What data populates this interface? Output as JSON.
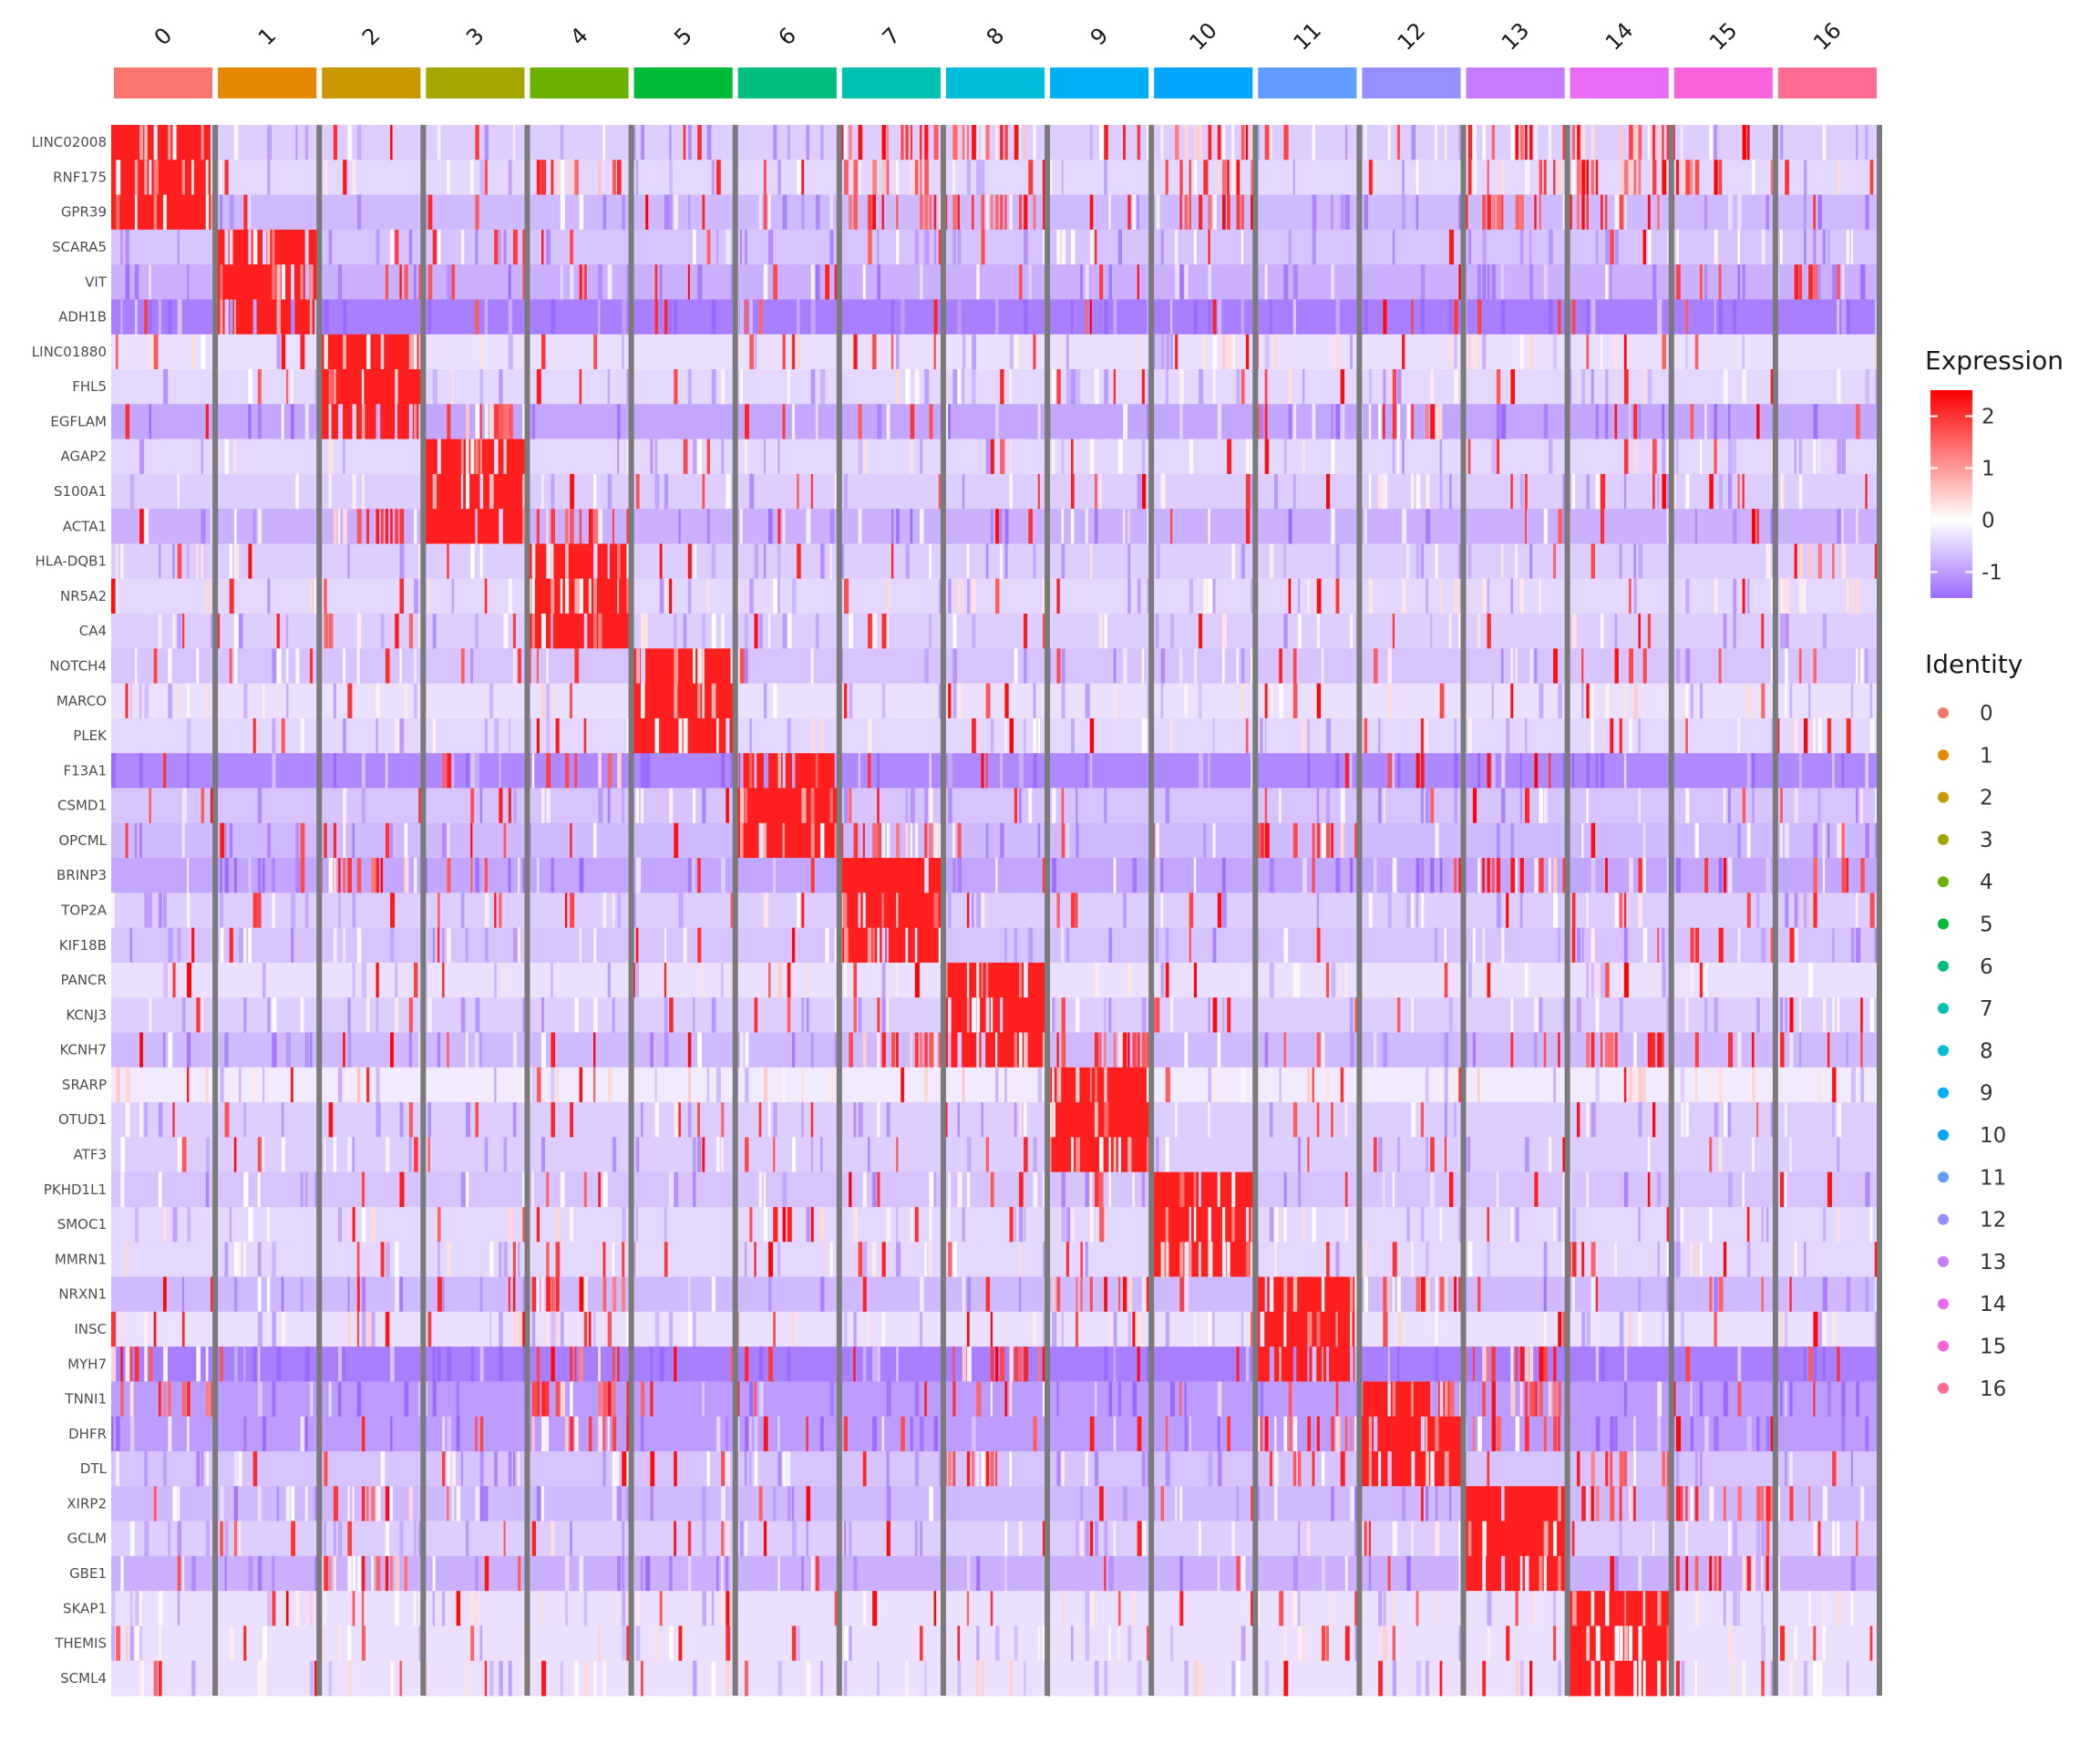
{
  "chart_data": {
    "type": "heatmap",
    "title": "",
    "xlabel": "",
    "ylabel": "",
    "clusters": [
      "0",
      "1",
      "2",
      "3",
      "4",
      "5",
      "6",
      "7",
      "8",
      "9",
      "10",
      "11",
      "12",
      "13",
      "14",
      "15",
      "16"
    ],
    "cluster_colors": [
      "#F8766D",
      "#E58700",
      "#C99800",
      "#A3A500",
      "#6BB100",
      "#00BA38",
      "#00BF7D",
      "#00C0AF",
      "#00BCD8",
      "#00B0F6",
      "#00A5FF",
      "#619CFF",
      "#9590FF",
      "#C77CFF",
      "#E76BF3",
      "#FA62DB",
      "#FF6C91"
    ],
    "genes": [
      "LINC02008",
      "RNF175",
      "GPR39",
      "SCARA5",
      "VIT",
      "ADH1B",
      "LINC01880",
      "FHL5",
      "EGFLAM",
      "AGAP2",
      "S100A1",
      "ACTA1",
      "HLA-DQB1",
      "NR5A2",
      "CA4",
      "NOTCH4",
      "MARCO",
      "PLEK",
      "F13A1",
      "CSMD1",
      "OPCML",
      "BRINP3",
      "TOP2A",
      "KIF18B",
      "PANCR",
      "KCNJ3",
      "KCNH7",
      "SRARP",
      "OTUD1",
      "ATF3",
      "PKHD1L1",
      "SMOC1",
      "MMRN1",
      "NRXN1",
      "INSC",
      "MYH7",
      "TNNI1",
      "DHFR",
      "DTL",
      "XIRP2",
      "GCLM",
      "GBE1",
      "SKAP1",
      "THEMIS",
      "SCML4"
    ],
    "marker_cluster": [
      0,
      0,
      0,
      1,
      1,
      1,
      2,
      2,
      2,
      3,
      3,
      3,
      4,
      4,
      4,
      5,
      5,
      5,
      6,
      6,
      6,
      7,
      7,
      7,
      8,
      8,
      8,
      9,
      9,
      9,
      10,
      10,
      10,
      11,
      11,
      11,
      12,
      12,
      12,
      13,
      13,
      13,
      14,
      14,
      14
    ],
    "baseline_expression": [
      -0.5,
      -0.4,
      -0.7,
      -0.6,
      -0.8,
      -1.3,
      -0.3,
      -0.4,
      -0.9,
      -0.4,
      -0.5,
      -0.8,
      -0.5,
      -0.4,
      -0.5,
      -0.6,
      -0.3,
      -0.4,
      -1.2,
      -0.6,
      -0.7,
      -0.9,
      -0.5,
      -0.6,
      -0.3,
      -0.5,
      -0.7,
      -0.2,
      -0.5,
      -0.5,
      -0.6,
      -0.4,
      -0.4,
      -0.7,
      -0.3,
      -1.3,
      -1.0,
      -1.0,
      -0.6,
      -0.7,
      -0.5,
      -0.8,
      -0.3,
      -0.3,
      -0.3
    ],
    "marker_expression": 2.5,
    "elevated": {
      "LINC02008": [
        0,
        7,
        8,
        10,
        13,
        14
      ],
      "RNF175": [
        0,
        4,
        7,
        10,
        13,
        14,
        15
      ],
      "GPR39": [
        0,
        7,
        8,
        10,
        13,
        14
      ],
      "ACTA1": [
        2,
        4
      ],
      "F13A1": [
        4
      ],
      "EGFLAM": [
        3,
        12
      ],
      "OPCML": [
        7,
        11
      ],
      "BRINP3": [
        2,
        7,
        13
      ],
      "KCNH7": [
        7,
        8,
        9,
        14
      ],
      "NRXN1": [
        4,
        9,
        12
      ],
      "MYH7": [
        0,
        4,
        8,
        13
      ],
      "TNNI1": [
        0,
        4,
        8,
        13
      ],
      "DHFR": [
        4,
        11,
        13
      ],
      "DTL": [
        8,
        14
      ],
      "XIRP2": [
        2,
        14,
        15
      ],
      "GBE1": [
        2,
        15
      ],
      "PLEK": [
        16
      ],
      "HLA-DQB1": [
        4,
        16
      ]
    },
    "expression_scale": {
      "title": "Expression",
      "ticks": [
        2,
        1,
        0,
        -1
      ],
      "range": [
        -1.5,
        2.5
      ],
      "colors": [
        "#9B6BFF",
        "#FFFFFF",
        "#FF0000"
      ]
    },
    "identity_legend": {
      "title": "Identity",
      "entries": [
        "0",
        "1",
        "2",
        "3",
        "4",
        "5",
        "6",
        "7",
        "8",
        "9",
        "10",
        "11",
        "12",
        "13",
        "14",
        "15",
        "16"
      ]
    }
  }
}
